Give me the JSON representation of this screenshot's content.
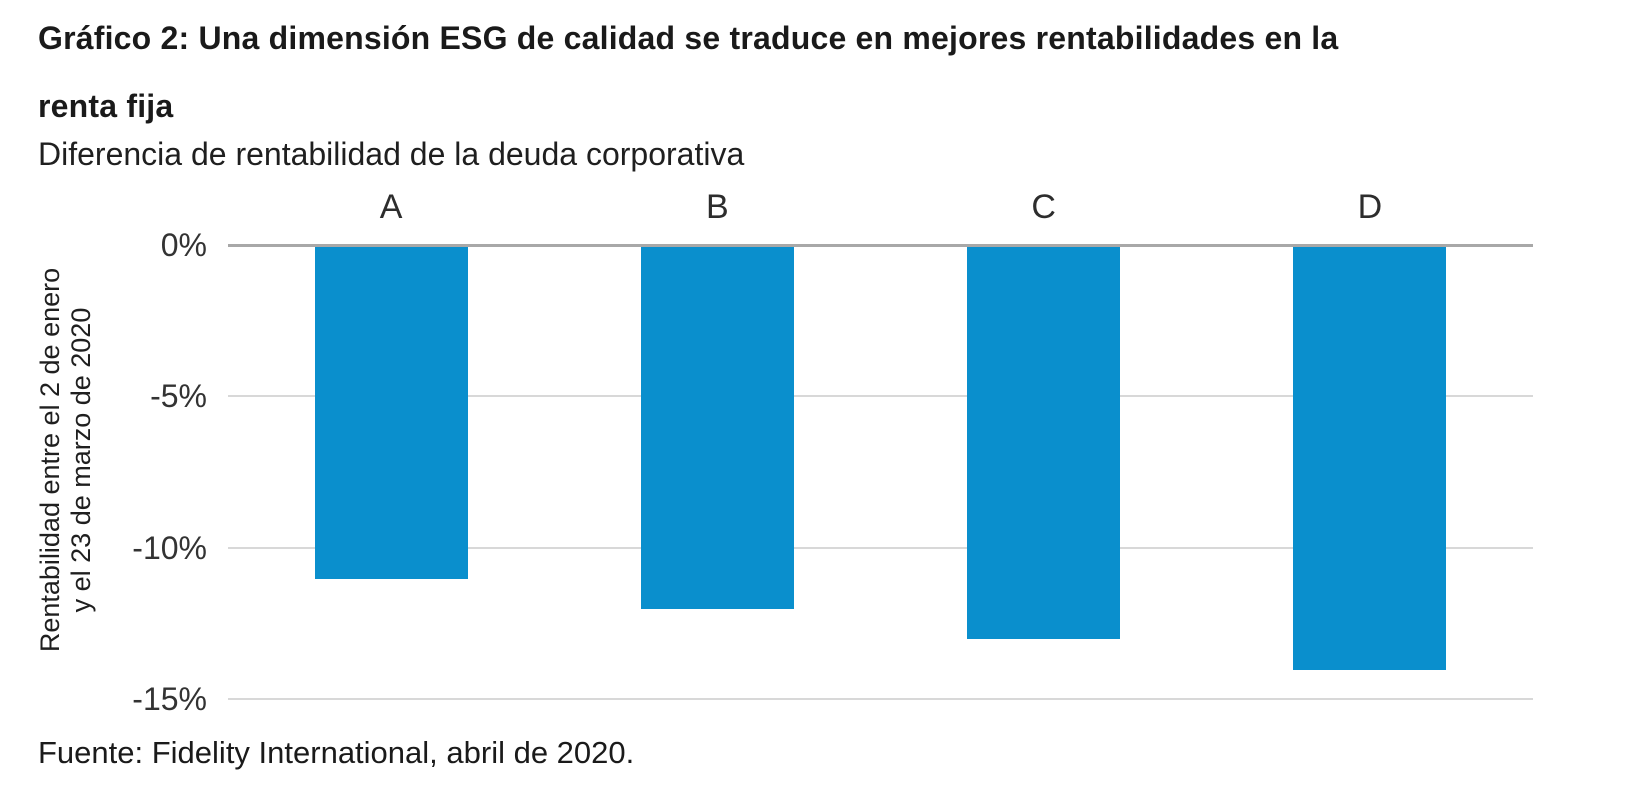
{
  "title_lines": [
    "Gráfico 2: Una dimensión ESG de calidad se traduce en mejores rentabilidades en la",
    "renta fija"
  ],
  "subtitle": "Diferencia de rentabilidad de la deuda corporativa",
  "source": "Fuente: Fidelity International, abril de 2020.",
  "colors": {
    "bar": "#0a8fcd",
    "zero_line": "#a8a8a8",
    "gridline": "#d8d8d8",
    "text": "#1a1a1a"
  },
  "chart_data": {
    "type": "bar",
    "title": "Gráfico 2: Una dimensión ESG de calidad se traduce en mejores rentabilidades en la renta fija",
    "subtitle": "Diferencia de rentabilidad de la deuda corporativa",
    "categories": [
      "A",
      "B",
      "C",
      "D"
    ],
    "values": [
      -11,
      -12,
      -13,
      -14
    ],
    "unit": "%",
    "xlabel": "",
    "ylabel": "Rentabilidad entre el 2 de enero y el 23 de marzo de 2020",
    "ylabel_lines": [
      "Rentabilidad entre el 2 de enero",
      "y el 23 de marzo de 2020"
    ],
    "ylim": [
      -15,
      0
    ],
    "yticks": [
      0,
      -5,
      -10,
      -15
    ],
    "ytick_labels": [
      "0%",
      "-5%",
      "-10%",
      "-15%"
    ],
    "grid": true,
    "legend": false,
    "bar_color": "#0a8fcd",
    "category_labels_position": "top",
    "source": "Fuente: Fidelity International, abril de 2020."
  }
}
